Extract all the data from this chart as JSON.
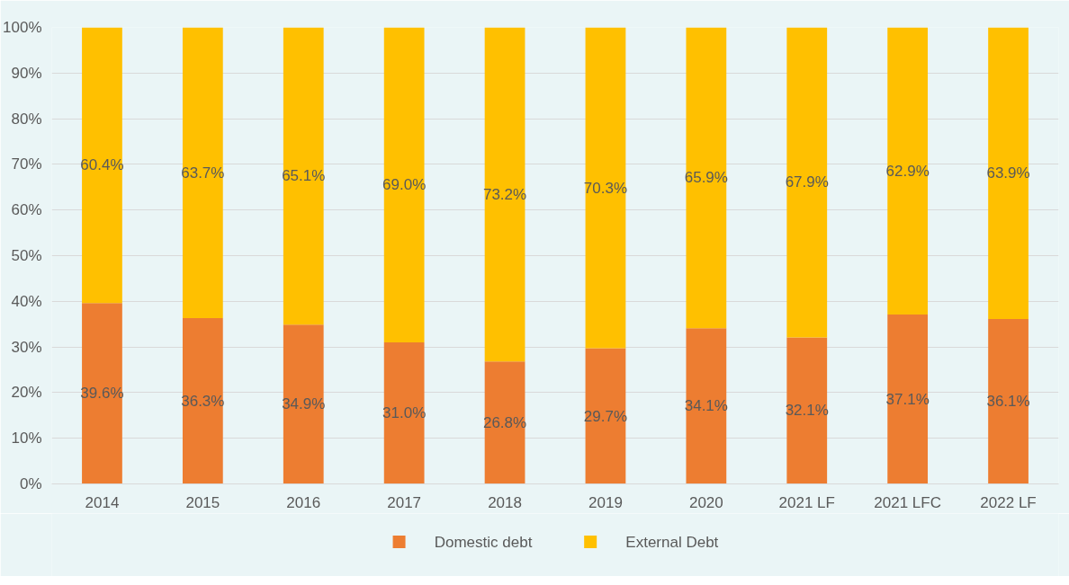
{
  "chart_data": {
    "type": "bar",
    "stacked": true,
    "categories": [
      "2014",
      "2015",
      "2016",
      "2017",
      "2018",
      "2019",
      "2020",
      "2021 LF",
      "2021 LFC",
      "2022 LF"
    ],
    "series": [
      {
        "name": "Domestic debt",
        "color": "#ed7d31",
        "values": [
          39.6,
          36.3,
          34.9,
          31.0,
          26.8,
          29.7,
          34.1,
          32.1,
          37.1,
          36.1
        ],
        "value_labels": [
          "39.6%",
          "36.3%",
          "34.9%",
          "31.0%",
          "26.8%",
          "29.7%",
          "34.1%",
          "32.1%",
          "37.1%",
          "36.1%"
        ]
      },
      {
        "name": "External Debt",
        "color": "#ffc000",
        "values": [
          60.4,
          63.7,
          65.1,
          69.0,
          73.2,
          70.3,
          65.9,
          67.9,
          62.9,
          63.9
        ],
        "value_labels": [
          "60.4%",
          "63.7%",
          "65.1%",
          "69.0%",
          "73.2%",
          "70.3%",
          "65.9%",
          "67.9%",
          "62.9%",
          "63.9%"
        ]
      }
    ],
    "ylim": [
      0,
      100
    ],
    "yticks": [
      {
        "value": 0,
        "label": "0%"
      },
      {
        "value": 10,
        "label": "10%"
      },
      {
        "value": 20,
        "label": "20%"
      },
      {
        "value": 30,
        "label": "30%"
      },
      {
        "value": 40,
        "label": "40%"
      },
      {
        "value": 50,
        "label": "50%"
      },
      {
        "value": 60,
        "label": "60%"
      },
      {
        "value": 70,
        "label": "70%"
      },
      {
        "value": 80,
        "label": "80%"
      },
      {
        "value": 90,
        "label": "90%"
      },
      {
        "value": 100,
        "label": "100%"
      }
    ],
    "grid": "y",
    "legend": "bottom"
  }
}
